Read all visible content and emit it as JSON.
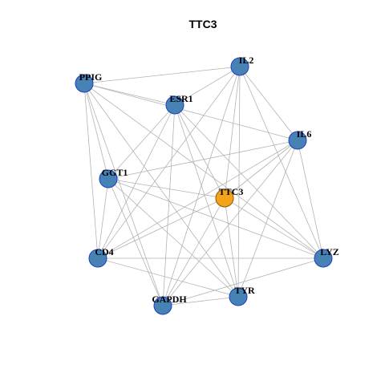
{
  "title": "TTC3",
  "nodes": [
    {
      "label": "IL2"
    },
    {
      "label": "PPIG"
    },
    {
      "label": "ESR1"
    },
    {
      "label": "IL6"
    },
    {
      "label": "GGT1"
    },
    {
      "label": "TTC3"
    },
    {
      "label": "CD4"
    },
    {
      "label": "LYZ"
    },
    {
      "label": "TYR"
    },
    {
      "label": "GAPDH"
    }
  ]
}
